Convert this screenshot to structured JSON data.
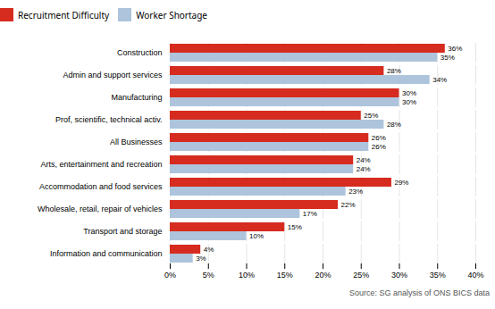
{
  "chart_data": {
    "type": "bar",
    "orientation": "horizontal",
    "categories": [
      "Information and communication",
      "Transport and storage",
      "Wholesale, retail, repair of vehicles",
      "Accommodation and food services",
      "Arts, entertainment and recreation",
      "All Businesses",
      "Prof, scientific, technical activ.",
      "Manufacturing",
      "Admin and support services",
      "Construction"
    ],
    "series": [
      {
        "name": "Recruitment Difficulty",
        "color": "#d62b1f",
        "values": [
          4,
          15,
          22,
          29,
          24,
          26,
          25,
          30,
          28,
          36
        ],
        "value_labels": [
          "4%",
          "15%",
          "22%",
          "29%",
          "24%",
          "26%",
          "25%",
          "30%",
          "28%",
          "36%"
        ]
      },
      {
        "name": "Worker Shortage",
        "color": "#adc4dc",
        "values": [
          3,
          10,
          17,
          23,
          24,
          26,
          28,
          30,
          34,
          35
        ],
        "value_labels": [
          "3%",
          "10%",
          "17%",
          "23%",
          "24%",
          "26%",
          "28%",
          "30%",
          "34%",
          "35%"
        ]
      }
    ],
    "xlim": [
      0,
      40
    ],
    "xticks": [
      {
        "value": 0,
        "label": "0%"
      },
      {
        "value": 5,
        "label": "5%"
      },
      {
        "value": 10,
        "label": "10%"
      },
      {
        "value": 15,
        "label": "15%"
      },
      {
        "value": 20,
        "label": "20%"
      },
      {
        "value": 25,
        "label": "25%"
      },
      {
        "value": 30,
        "label": "30%"
      },
      {
        "value": 35,
        "label": "35%"
      },
      {
        "value": 40,
        "label": "40%"
      }
    ],
    "grid": true,
    "legend": "top",
    "data_labels": true,
    "caption": "Source: SG analysis of ONS BICS data"
  }
}
